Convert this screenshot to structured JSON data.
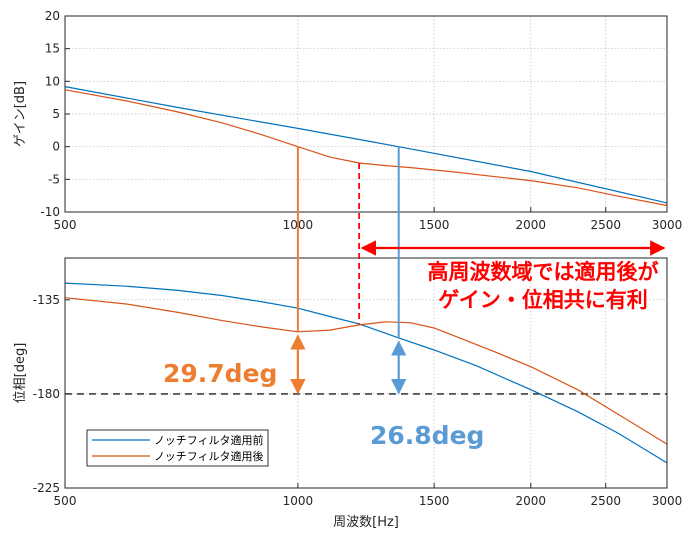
{
  "chart_data": [
    {
      "type": "line",
      "title": "",
      "xlabel": "",
      "ylabel": "ゲイン[dB]",
      "x_scale": "log",
      "xlim": [
        500,
        3000
      ],
      "ylim": [
        -10,
        20
      ],
      "grid": true,
      "x_ticks": [
        500,
        1000,
        1500,
        2000,
        2500,
        3000
      ],
      "y_ticks": [
        20,
        15,
        10,
        5,
        0,
        -5,
        -10
      ],
      "series": [
        {
          "name": "ノッチフィルタ適用前",
          "color": "#0072BD",
          "x": [
            500,
            700,
            1000,
            1350,
            2000,
            3000
          ],
          "y": [
            9.2,
            6.0,
            2.8,
            0,
            -3.8,
            -8.6
          ]
        },
        {
          "name": "ノッチフィルタ適用後",
          "color": "#D95319",
          "x": [
            500,
            600,
            700,
            800,
            900,
            1000,
            1100,
            1200,
            1300,
            1400,
            1600,
            1800,
            2000,
            2300,
            2600,
            3000
          ],
          "y": [
            8.7,
            7.0,
            5.3,
            3.6,
            1.8,
            0,
            -1.6,
            -2.5,
            -2.9,
            -3.2,
            -3.9,
            -4.6,
            -5.2,
            -6.3,
            -7.6,
            -9.0
          ]
        }
      ]
    },
    {
      "type": "line",
      "title": "",
      "xlabel": "周波数[Hz]",
      "ylabel": "位相[deg]",
      "x_scale": "log",
      "xlim": [
        500,
        3000
      ],
      "ylim": [
        -225,
        -115
      ],
      "grid": true,
      "x_ticks": [
        500,
        1000,
        1500,
        2000,
        2500,
        3000
      ],
      "y_ticks": [
        -135,
        -180,
        -225
      ],
      "reference_line": -180,
      "legend_position": "bottom-left",
      "series": [
        {
          "name": "ノッチフィルタ適用前",
          "color": "#0072BD",
          "x": [
            500,
            600,
            700,
            800,
            900,
            1000,
            1100,
            1200,
            1350,
            1500,
            1700,
            2000,
            2300,
            2600,
            3000
          ],
          "y": [
            -127,
            -128.5,
            -130.5,
            -133,
            -136,
            -139,
            -143,
            -146.5,
            -153.2,
            -159,
            -166.5,
            -178,
            -188.5,
            -199,
            -213
          ]
        },
        {
          "name": "ノッチフィルタ適用後",
          "color": "#D95319",
          "x": [
            500,
            600,
            700,
            800,
            900,
            1000,
            1100,
            1200,
            1300,
            1400,
            1500,
            1600,
            1800,
            2000,
            2300,
            2600,
            3000
          ],
          "y": [
            -134,
            -137,
            -141,
            -145,
            -148,
            -150.3,
            -149.5,
            -147,
            -145.5,
            -146,
            -148.5,
            -152.5,
            -160,
            -167,
            -178,
            -190,
            -204
          ]
        }
      ]
    }
  ],
  "annotations": {
    "message_line1": "高周波数域では適用後が",
    "message_line2": "ゲイン・位相共に有利",
    "margin_after": "29.7deg",
    "margin_before": "26.8deg",
    "marker_after_freq": 1000,
    "marker_before_freq": 1350,
    "crossover_freq": 1200,
    "color_highlight": "#FF0000",
    "color_after_label": "#ED7D31",
    "color_before_label": "#5B9BD5"
  }
}
